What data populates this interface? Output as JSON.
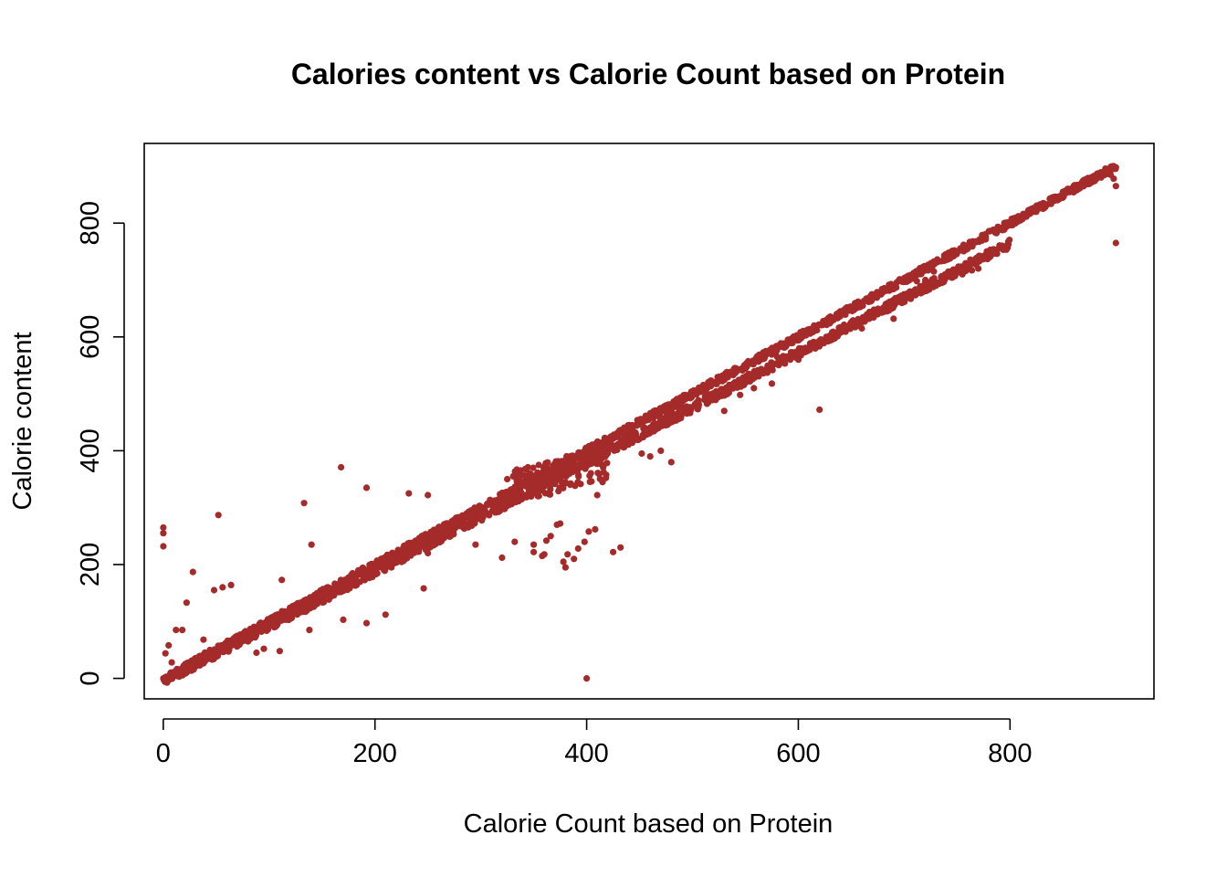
{
  "chart_data": {
    "type": "scatter",
    "title": "Calories content vs Calorie Count based on Protein",
    "xlabel": "Calorie Count based on Protein",
    "ylabel": "Calorie content",
    "xlim": [
      -18,
      936
    ],
    "ylim": [
      -36,
      940
    ],
    "xticks": [
      0,
      200,
      400,
      600,
      800
    ],
    "yticks": [
      0,
      200,
      400,
      600,
      800
    ],
    "xtick_labels": [
      "0",
      "200",
      "400",
      "600",
      "800"
    ],
    "ytick_labels": [
      "0",
      "200",
      "400",
      "600",
      "800"
    ],
    "grid": false,
    "point_color": "#A52A2A",
    "series": [
      {
        "points": [
          [
            0,
            0
          ],
          [
            0,
            265
          ],
          [
            0,
            255
          ],
          [
            0,
            232
          ],
          [
            2,
            44
          ],
          [
            5,
            58
          ],
          [
            8,
            28
          ],
          [
            12,
            85
          ],
          [
            18,
            85
          ],
          [
            22,
            133
          ],
          [
            28,
            187
          ],
          [
            38,
            68
          ],
          [
            48,
            155
          ],
          [
            52,
            287
          ],
          [
            56,
            160
          ],
          [
            64,
            164
          ],
          [
            72,
            60
          ],
          [
            88,
            45
          ],
          [
            95,
            52
          ],
          [
            110,
            48
          ],
          [
            112,
            173
          ],
          [
            138,
            85
          ],
          [
            133,
            308
          ],
          [
            140,
            235
          ],
          [
            168,
            371
          ],
          [
            170,
            103
          ],
          [
            192,
            335
          ],
          [
            192,
            97
          ],
          [
            210,
            112
          ],
          [
            232,
            325
          ],
          [
            246,
            158
          ],
          [
            250,
            322
          ],
          [
            250,
            220
          ],
          [
            295,
            235
          ],
          [
            320,
            212
          ],
          [
            325,
            350
          ],
          [
            332,
            240
          ],
          [
            350,
            235
          ],
          [
            350,
            222
          ],
          [
            358,
            215
          ],
          [
            360,
            218
          ],
          [
            362,
            242
          ],
          [
            366,
            250
          ],
          [
            372,
            270
          ],
          [
            375,
            272
          ],
          [
            378,
            205
          ],
          [
            380,
            195
          ],
          [
            382,
            218
          ],
          [
            388,
            210
          ],
          [
            392,
            228
          ],
          [
            398,
            240
          ],
          [
            400,
            0
          ],
          [
            402,
            258
          ],
          [
            408,
            262
          ],
          [
            410,
            322
          ],
          [
            415,
            345
          ],
          [
            425,
            222
          ],
          [
            432,
            230
          ],
          [
            452,
            395
          ],
          [
            460,
            390
          ],
          [
            470,
            400
          ],
          [
            480,
            380
          ],
          [
            505,
            473
          ],
          [
            515,
            485
          ],
          [
            530,
            470
          ],
          [
            545,
            498
          ],
          [
            552,
            522
          ],
          [
            558,
            510
          ],
          [
            575,
            518
          ],
          [
            580,
            565
          ],
          [
            600,
            560
          ],
          [
            620,
            472
          ],
          [
            630,
            600
          ],
          [
            640,
            615
          ],
          [
            650,
            650
          ],
          [
            660,
            615
          ],
          [
            668,
            670
          ],
          [
            690,
            632
          ],
          [
            698,
            660
          ],
          [
            702,
            672
          ],
          [
            712,
            698
          ],
          [
            720,
            700
          ],
          [
            728,
            715
          ],
          [
            730,
            690
          ],
          [
            742,
            748
          ],
          [
            745,
            715
          ],
          [
            755,
            710
          ],
          [
            764,
            717
          ],
          [
            770,
            720
          ],
          [
            792,
            792
          ],
          [
            808,
            812
          ],
          [
            850,
            855
          ],
          [
            888,
            888
          ],
          [
            892,
            895
          ],
          [
            895,
            885
          ],
          [
            898,
            900
          ],
          [
            900,
            898
          ],
          [
            898,
            878
          ],
          [
            900,
            865
          ],
          [
            900,
            765
          ]
        ]
      }
    ],
    "trend_bands": [
      {
        "x_start": 0,
        "x_end": 900,
        "slope": 1.0,
        "intercept": 0,
        "spread": 6
      },
      {
        "x_start": 0,
        "x_end": 800,
        "slope": 0.96,
        "intercept": -4,
        "spread": 8
      },
      {
        "x_start": 330,
        "x_end": 420,
        "slope": 0.5,
        "intercept": 170,
        "spread": 30
      }
    ]
  }
}
